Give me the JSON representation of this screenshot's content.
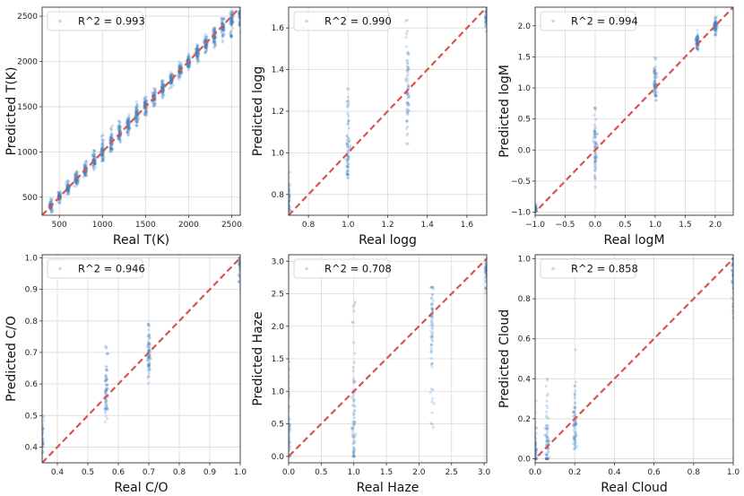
{
  "chart_data": [
    {
      "type": "scatter",
      "xlabel": "Real T(K)",
      "ylabel": "Predicted T(K)",
      "legend": "R^2 = 0.993",
      "legend_placement": "top-left",
      "grid": true,
      "xlim": [
        300,
        2600
      ],
      "ylim": [
        300,
        2600
      ],
      "xticks": [
        500,
        1000,
        1500,
        2000,
        2500
      ],
      "yticks": [
        500,
        1000,
        1500,
        2000,
        2500
      ],
      "xtick_labels": [
        "500",
        "1000",
        "1500",
        "2000",
        "2500"
      ],
      "ytick_labels": [
        "500",
        "1000",
        "1500",
        "2000",
        "2500"
      ],
      "reference_line": {
        "style": "dashed",
        "color": "#d9534f",
        "from": [
          300,
          300
        ],
        "to": [
          2600,
          2600
        ]
      },
      "series": [
        {
          "values": [
            {
              "x": 400,
              "y_min": 330,
              "y_max": 480,
              "y_mid": 400
            },
            {
              "x": 500,
              "y_min": 430,
              "y_max": 580,
              "y_mid": 500
            },
            {
              "x": 600,
              "y_min": 530,
              "y_max": 690,
              "y_mid": 600
            },
            {
              "x": 700,
              "y_min": 620,
              "y_max": 800,
              "y_mid": 700
            },
            {
              "x": 800,
              "y_min": 720,
              "y_max": 920,
              "y_mid": 800
            },
            {
              "x": 900,
              "y_min": 800,
              "y_max": 1020,
              "y_mid": 900
            },
            {
              "x": 1000,
              "y_min": 900,
              "y_max": 1200,
              "y_mid": 1000
            },
            {
              "x": 1100,
              "y_min": 1000,
              "y_max": 1300,
              "y_mid": 1100
            },
            {
              "x": 1200,
              "y_min": 1100,
              "y_max": 1360,
              "y_mid": 1200
            },
            {
              "x": 1300,
              "y_min": 1180,
              "y_max": 1440,
              "y_mid": 1300
            },
            {
              "x": 1400,
              "y_min": 1280,
              "y_max": 1560,
              "y_mid": 1400
            },
            {
              "x": 1500,
              "y_min": 1400,
              "y_max": 1620,
              "y_mid": 1500
            },
            {
              "x": 1600,
              "y_min": 1500,
              "y_max": 1720,
              "y_mid": 1600
            },
            {
              "x": 1700,
              "y_min": 1580,
              "y_max": 1800,
              "y_mid": 1700
            },
            {
              "x": 1800,
              "y_min": 1700,
              "y_max": 1900,
              "y_mid": 1800
            },
            {
              "x": 1900,
              "y_min": 1800,
              "y_max": 2000,
              "y_mid": 1900
            },
            {
              "x": 2000,
              "y_min": 1900,
              "y_max": 2100,
              "y_mid": 2000
            },
            {
              "x": 2100,
              "y_min": 1980,
              "y_max": 2200,
              "y_mid": 2100
            },
            {
              "x": 2200,
              "y_min": 2080,
              "y_max": 2300,
              "y_mid": 2200
            },
            {
              "x": 2300,
              "y_min": 2120,
              "y_max": 2380,
              "y_mid": 2280
            },
            {
              "x": 2400,
              "y_min": 2200,
              "y_max": 2480,
              "y_mid": 2380
            },
            {
              "x": 2500,
              "y_min": 2250,
              "y_max": 2560,
              "y_mid": 2460
            },
            {
              "x": 2600,
              "y_min": 2300,
              "y_max": 2600,
              "y_mid": 2520
            }
          ]
        }
      ]
    },
    {
      "type": "scatter",
      "xlabel": "Real logg",
      "ylabel": "Predicted logg",
      "legend": "R^2 = 0.990",
      "legend_placement": "top-left",
      "grid": true,
      "xlim": [
        0.7,
        1.7
      ],
      "ylim": [
        0.7,
        1.7
      ],
      "xticks": [
        0.8,
        1.0,
        1.2,
        1.4,
        1.6
      ],
      "yticks": [
        0.8,
        1.0,
        1.2,
        1.4,
        1.6
      ],
      "xtick_labels": [
        "0.8",
        "1.0",
        "1.2",
        "1.4",
        "1.6"
      ],
      "ytick_labels": [
        "0.8",
        "1.0",
        "1.2",
        "1.4",
        "1.6"
      ],
      "reference_line": {
        "style": "dashed",
        "color": "#d9534f",
        "from": [
          0.7,
          0.7
        ],
        "to": [
          1.7,
          1.7
        ]
      },
      "series": [
        {
          "values": [
            {
              "x": 0.7,
              "y_min": 0.72,
              "y_max": 0.95,
              "y_mid": 0.78
            },
            {
              "x": 1.0,
              "y_min": 0.88,
              "y_max": 1.35,
              "y_mid": 1.01
            },
            {
              "x": 1.3,
              "y_min": 1.03,
              "y_max": 1.64,
              "y_mid": 1.3
            },
            {
              "x": 1.7,
              "y_min": 1.55,
              "y_max": 1.7,
              "y_mid": 1.65
            }
          ]
        }
      ]
    },
    {
      "type": "scatter",
      "xlabel": "Real logM",
      "ylabel": "Predicted logM",
      "legend": "R^2 = 0.994",
      "legend_placement": "top-left",
      "grid": true,
      "xlim": [
        -1.0,
        2.3
      ],
      "ylim": [
        -1.05,
        2.3
      ],
      "xticks": [
        -1.0,
        -0.5,
        0.0,
        0.5,
        1.0,
        1.5,
        2.0
      ],
      "yticks": [
        -1.0,
        -0.5,
        0.0,
        0.5,
        1.0,
        1.5,
        2.0
      ],
      "xtick_labels": [
        "−1.0",
        "−0.5",
        "0.0",
        "0.5",
        "1.0",
        "1.5",
        "2.0"
      ],
      "ytick_labels": [
        "−1.0",
        "−0.5",
        "0.0",
        "0.5",
        "1.0",
        "1.5",
        "2.0"
      ],
      "reference_line": {
        "style": "dashed",
        "color": "#d9534f",
        "from": [
          -1.05,
          -1.05
        ],
        "to": [
          2.3,
          2.3
        ]
      },
      "series": [
        {
          "values": [
            {
              "x": -1.0,
              "y_min": -1.0,
              "y_max": -0.85,
              "y_mid": -0.95
            },
            {
              "x": 0.0,
              "y_min": -0.6,
              "y_max": 0.75,
              "y_mid": 0.0
            },
            {
              "x": 1.0,
              "y_min": 0.8,
              "y_max": 1.55,
              "y_mid": 1.05
            },
            {
              "x": 1.7,
              "y_min": 1.6,
              "y_max": 1.95,
              "y_mid": 1.75
            },
            {
              "x": 2.0,
              "y_min": 1.85,
              "y_max": 2.15,
              "y_mid": 2.0
            }
          ]
        }
      ]
    },
    {
      "type": "scatter",
      "xlabel": "Real C/O",
      "ylabel": "Predicted C/O",
      "legend": "R^2 = 0.946",
      "legend_placement": "top-left",
      "grid": true,
      "xlim": [
        0.35,
        1.0
      ],
      "ylim": [
        0.35,
        1.01
      ],
      "xticks": [
        0.4,
        0.5,
        0.6,
        0.7,
        0.8,
        0.9,
        1.0
      ],
      "yticks": [
        0.4,
        0.5,
        0.6,
        0.7,
        0.8,
        0.9,
        1.0
      ],
      "xtick_labels": [
        "0.4",
        "0.5",
        "0.6",
        "0.7",
        "0.8",
        "0.9",
        "1.0"
      ],
      "ytick_labels": [
        "0.4",
        "0.5",
        "0.6",
        "0.7",
        "0.8",
        "0.9",
        "1.0"
      ],
      "reference_line": {
        "style": "dashed",
        "color": "#d9534f",
        "from": [
          0.35,
          0.35
        ],
        "to": [
          1.01,
          1.01
        ]
      },
      "series": [
        {
          "values": [
            {
              "x": 0.35,
              "y_min": 0.36,
              "y_max": 0.5,
              "y_mid": 0.42
            },
            {
              "x": 0.56,
              "y_min": 0.48,
              "y_max": 0.72,
              "y_mid": 0.56
            },
            {
              "x": 0.7,
              "y_min": 0.6,
              "y_max": 0.8,
              "y_mid": 0.69
            },
            {
              "x": 1.0,
              "y_min": 0.88,
              "y_max": 1.0,
              "y_mid": 0.98
            }
          ]
        }
      ]
    },
    {
      "type": "scatter",
      "xlabel": "Real Haze",
      "ylabel": "Predicted Haze",
      "legend": "R^2 = 0.708",
      "legend_placement": "top-left",
      "grid": true,
      "xlim": [
        0.0,
        3.04
      ],
      "ylim": [
        -0.1,
        3.1
      ],
      "xticks": [
        0.0,
        0.5,
        1.0,
        1.5,
        2.0,
        2.5,
        3.0
      ],
      "yticks": [
        0.0,
        0.5,
        1.0,
        1.5,
        2.0,
        2.5,
        3.0
      ],
      "xtick_labels": [
        "0.0",
        "0.5",
        "1.0",
        "1.5",
        "2.0",
        "2.5",
        "3.0"
      ],
      "ytick_labels": [
        "0.0",
        "0.5",
        "1.0",
        "1.5",
        "2.0",
        "2.5",
        "3.0"
      ],
      "reference_line": {
        "style": "dashed",
        "color": "#d9534f",
        "from": [
          -0.1,
          -0.1
        ],
        "to": [
          3.1,
          3.1
        ]
      },
      "series": [
        {
          "values": [
            {
              "x": 0.0,
              "y_min": 0.0,
              "y_max": 1.5,
              "y_mid": 0.3
            },
            {
              "x": 1.0,
              "y_min": 0.0,
              "y_max": 2.45,
              "y_mid": 0.4
            },
            {
              "x": 2.2,
              "y_min": 0.35,
              "y_max": 2.6,
              "y_mid": 2.05
            },
            {
              "x": 3.04,
              "y_min": 2.5,
              "y_max": 3.0,
              "y_mid": 2.85
            }
          ]
        }
      ]
    },
    {
      "type": "scatter",
      "xlabel": "Real Cloud",
      "ylabel": "Predicted Cloud",
      "legend": "R^2 = 0.858",
      "legend_placement": "top-left",
      "grid": true,
      "xlim": [
        0.0,
        1.0
      ],
      "ylim": [
        -0.02,
        1.02
      ],
      "xticks": [
        0.0,
        0.2,
        0.4,
        0.6,
        0.8,
        1.0
      ],
      "yticks": [
        0.0,
        0.2,
        0.4,
        0.6,
        0.8,
        1.0
      ],
      "xtick_labels": [
        "0.0",
        "0.2",
        "0.4",
        "0.6",
        "0.8",
        "1.0"
      ],
      "ytick_labels": [
        "0.0",
        "0.2",
        "0.4",
        "0.6",
        "0.8",
        "1.0"
      ],
      "reference_line": {
        "style": "dashed",
        "color": "#d9534f",
        "from": [
          -0.02,
          -0.02
        ],
        "to": [
          1.02,
          1.02
        ]
      },
      "series": [
        {
          "values": [
            {
              "x": 0.0,
              "y_min": 0.0,
              "y_max": 0.3,
              "y_mid": 0.03
            },
            {
              "x": 0.06,
              "y_min": 0.0,
              "y_max": 0.45,
              "y_mid": 0.05
            },
            {
              "x": 0.2,
              "y_min": 0.05,
              "y_max": 0.55,
              "y_mid": 0.17
            },
            {
              "x": 1.0,
              "y_min": 0.7,
              "y_max": 1.0,
              "y_mid": 0.93
            }
          ]
        }
      ]
    }
  ],
  "colors": {
    "points": "#3a7fc0",
    "reference_line": "#d9534f",
    "grid": "#d9d9d9",
    "axes": "#333333"
  }
}
